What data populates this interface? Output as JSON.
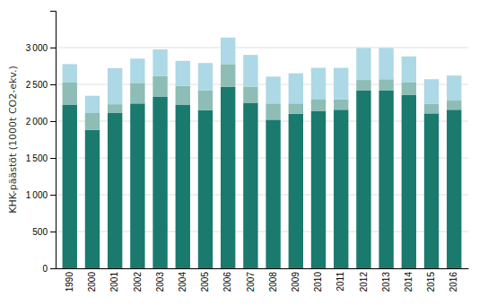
{
  "chart_data": {
    "type": "bar",
    "stacked": true,
    "grid": true,
    "ylabel": "KHK-päästöt (1000t CO2-ekv.)",
    "categories": [
      "1990",
      "2000",
      "2001",
      "2002",
      "2003",
      "2004",
      "2005",
      "2006",
      "2007",
      "2008",
      "2009",
      "2010",
      "2011",
      "2012",
      "2013",
      "2014",
      "2015",
      "2016"
    ],
    "series": [
      {
        "color": "#1a7a6e",
        "values": [
          2225,
          1880,
          2110,
          2240,
          2335,
          2220,
          2150,
          2465,
          2250,
          2020,
          2100,
          2140,
          2155,
          2415,
          2415,
          2355,
          2105,
          2155
        ]
      },
      {
        "color": "#8dbdb5",
        "values": [
          300,
          230,
          120,
          280,
          280,
          260,
          270,
          310,
          220,
          220,
          140,
          160,
          140,
          145,
          155,
          170,
          130,
          125
        ]
      },
      {
        "color": "#add8e6",
        "values": [
          250,
          235,
          490,
          330,
          360,
          340,
          370,
          360,
          430,
          365,
          410,
          425,
          430,
          435,
          425,
          355,
          335,
          340
        ]
      }
    ],
    "ylim": [
      0,
      3500
    ],
    "yticks": [
      0,
      500,
      {
        "value": 1000,
        "label": "1 000"
      },
      {
        "value": 1500,
        "label": "1 500"
      },
      {
        "value": 2000,
        "label": "2 000"
      },
      {
        "value": 2500,
        "label": "2 500"
      },
      {
        "value": 3000,
        "label": "3 000"
      }
    ]
  }
}
